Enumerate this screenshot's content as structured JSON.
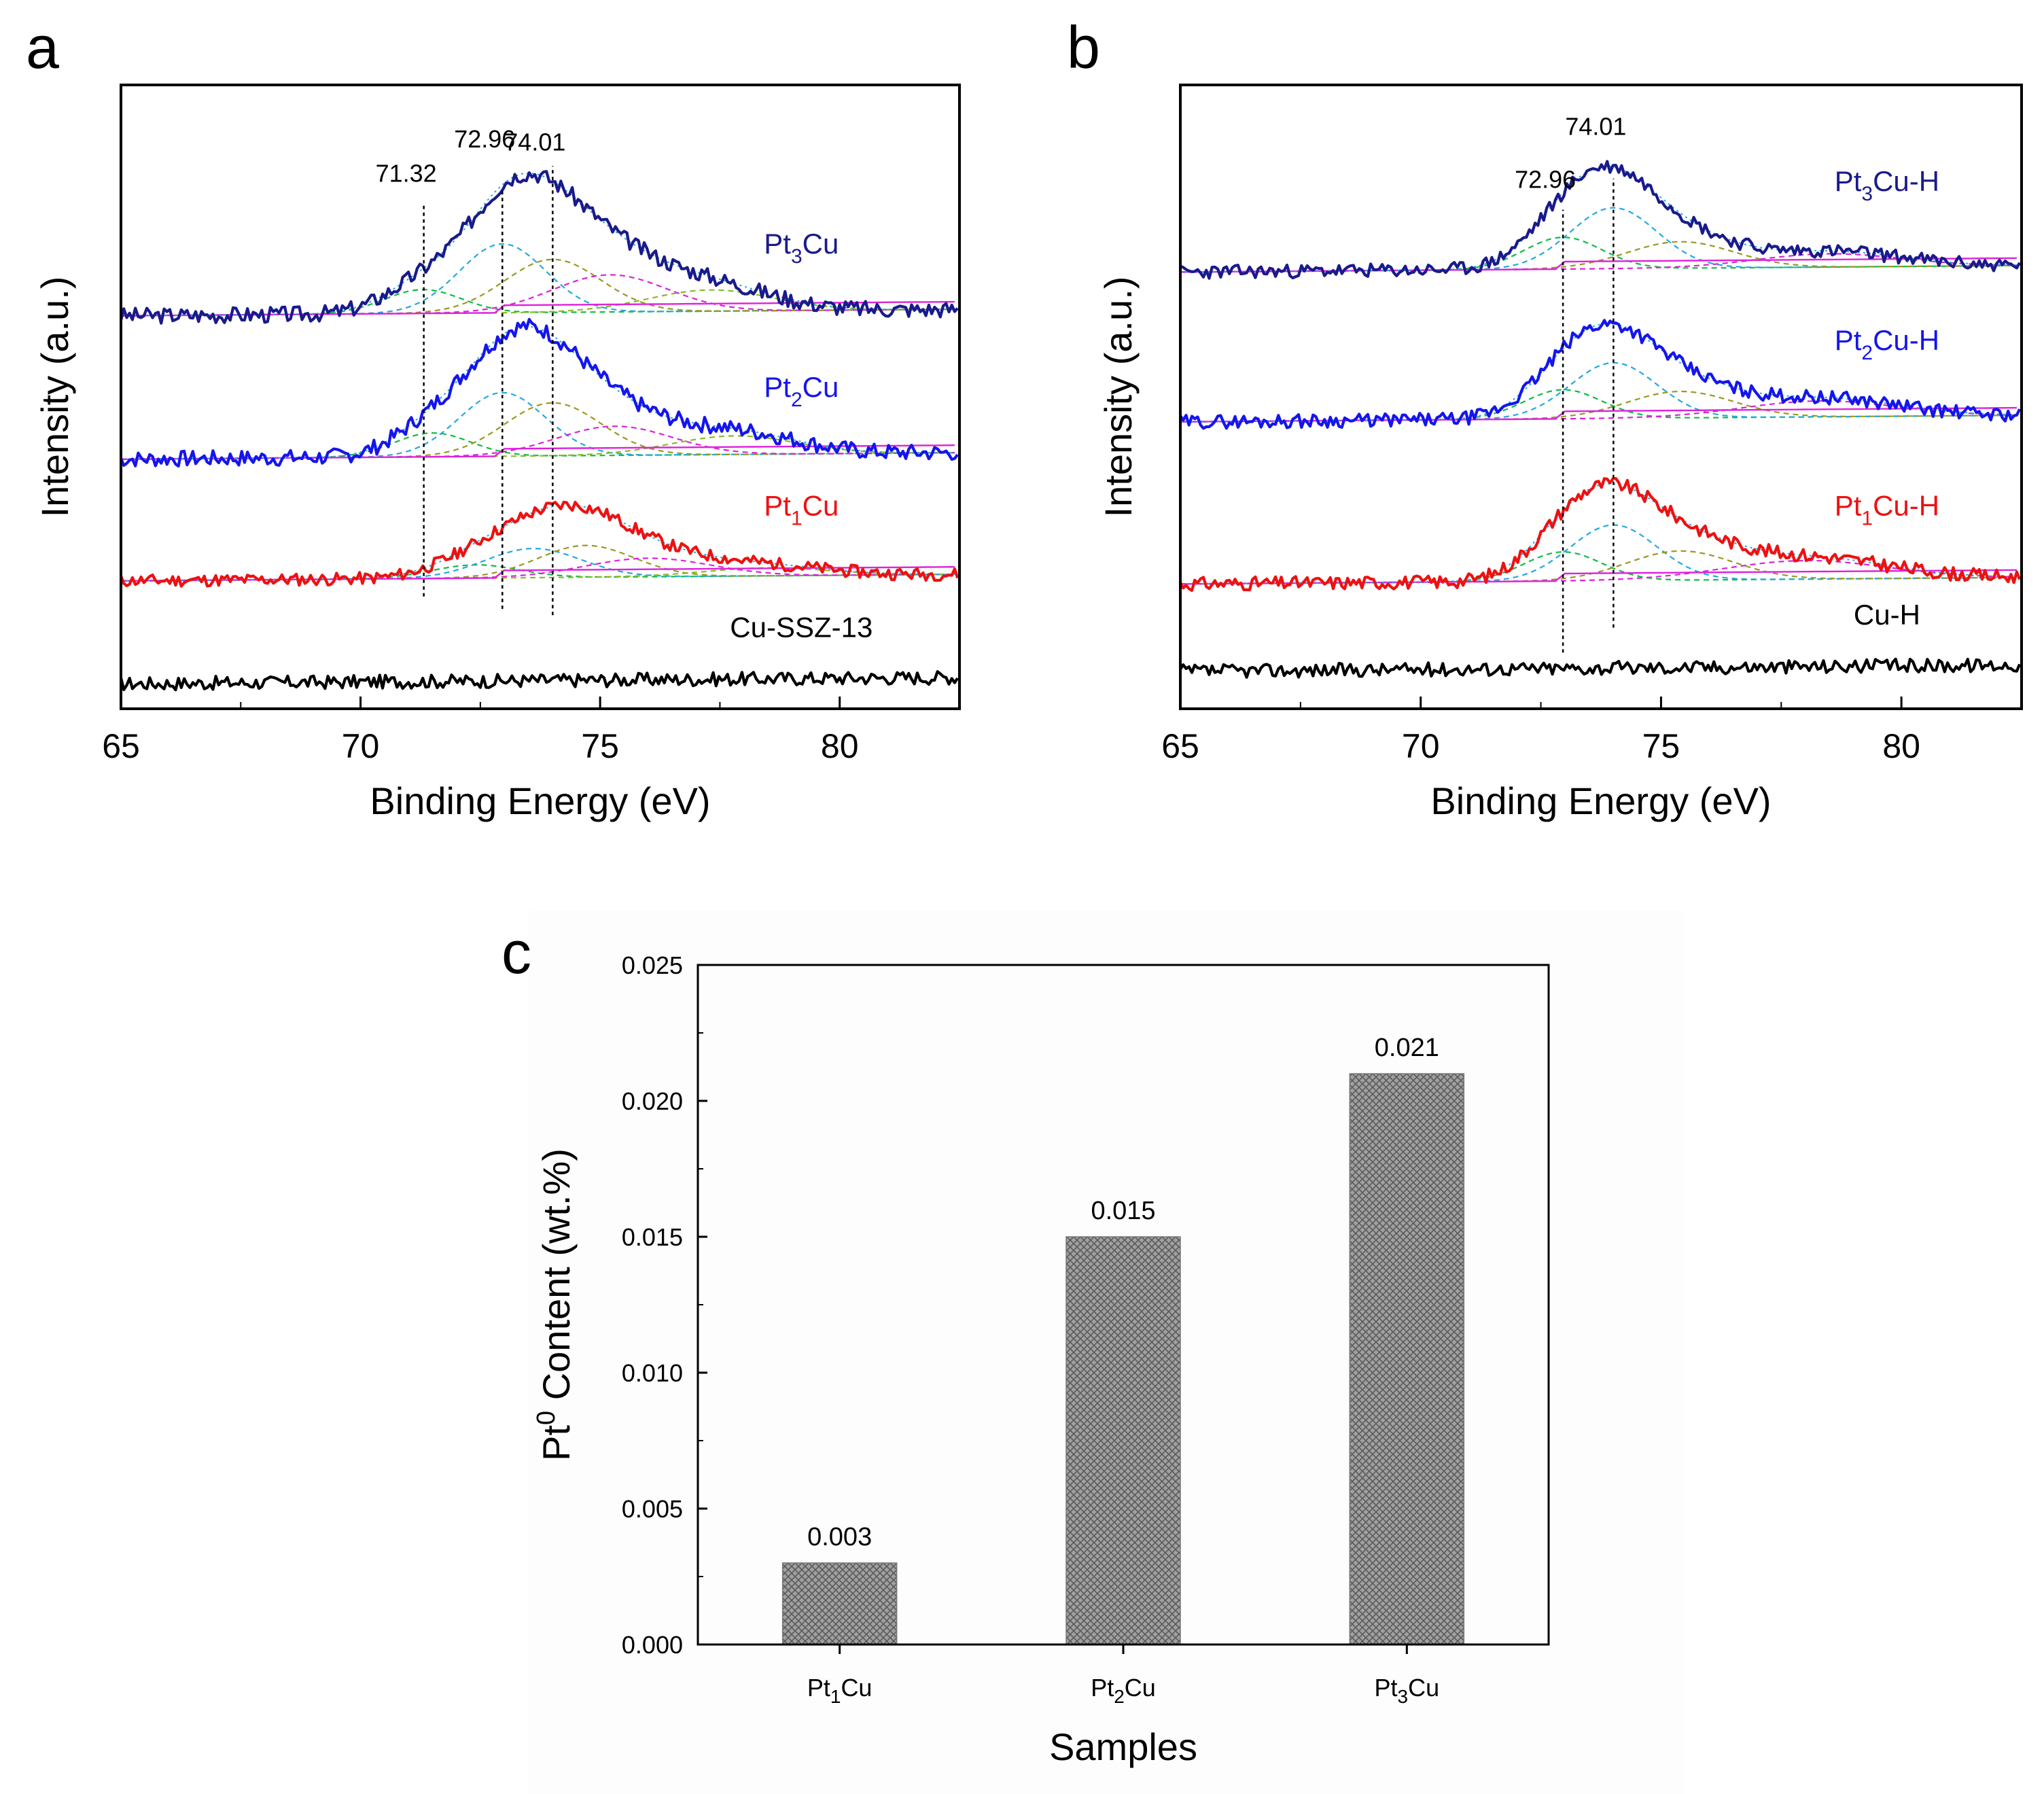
{
  "colors": {
    "navy": "#1a1a8c",
    "blue": "#1515ee",
    "red": "#ee1111",
    "black": "#000000",
    "bar_fill": "#9a9a9a",
    "bar_hatch": "#5a5a5a",
    "fit_green": "#11bb44",
    "fit_cyan": "#22aadd",
    "fit_olive": "#999922",
    "fit_magenta": "#dd22dd",
    "fit_yellowgreen": "#88bb22"
  },
  "chart_data": [
    {
      "id": "a",
      "type": "line",
      "panel_label": "a",
      "xlabel": "Binding Energy (eV)",
      "ylabel": "Intensity (a.u.)",
      "xlim": [
        65,
        82.5
      ],
      "xticks": [
        65,
        70,
        75,
        80
      ],
      "ylim": [
        0,
        10
      ],
      "y_ticks_shown": false,
      "reference_lines": [
        {
          "x": 71.32,
          "label": "71.32",
          "y_from": 1.8,
          "y_to": 8.1,
          "label_y": 8.45
        },
        {
          "x": 72.96,
          "label": "72.96",
          "y_from": 1.6,
          "y_to": 8.3,
          "label_y": 9.0
        },
        {
          "x": 74.01,
          "label": "74.01",
          "y_from": 1.5,
          "y_to": 8.7,
          "label_y": 8.95
        }
      ],
      "series": [
        {
          "name": "Pt3Cu",
          "label_main": "Pt",
          "label_sub": "3",
          "label_end": "Cu",
          "label_x": 79.2,
          "label_y": 7.3,
          "color": "navy",
          "baseline": 6.3,
          "peaks": [
            [
              71.3,
              0.45,
              0.8
            ],
            [
              72.96,
              1.3,
              0.9
            ],
            [
              74.01,
              1.0,
              1.0
            ],
            [
              75.2,
              0.7,
              1.2
            ],
            [
              77.3,
              0.4,
              1.3
            ]
          ],
          "noise_seed": 3,
          "noise_amp": 0.13
        },
        {
          "name": "Pt2Cu",
          "label_main": "Pt",
          "label_sub": "2",
          "label_end": "Cu",
          "label_x": 79.2,
          "label_y": 5.0,
          "color": "blue",
          "baseline": 4.0,
          "peaks": [
            [
              71.5,
              0.45,
              0.8
            ],
            [
              72.96,
              1.2,
              0.9
            ],
            [
              74.01,
              1.0,
              1.0
            ],
            [
              75.3,
              0.55,
              1.2
            ],
            [
              77.8,
              0.35,
              1.3
            ]
          ],
          "noise_seed": 7,
          "noise_amp": 0.13
        },
        {
          "name": "Pt1Cu",
          "label_main": "Pt",
          "label_sub": "1",
          "label_end": "Cu",
          "label_x": 79.2,
          "label_y": 3.1,
          "color": "red",
          "baseline": 2.05,
          "peaks": [
            [
              72.4,
              0.25,
              0.9
            ],
            [
              73.6,
              0.55,
              1.0
            ],
            [
              74.7,
              0.6,
              1.0
            ],
            [
              76.0,
              0.35,
              1.3
            ],
            [
              78.5,
              0.15,
              1.3
            ]
          ],
          "noise_seed": 11,
          "noise_amp": 0.1
        },
        {
          "name": "Cu-SSZ-13",
          "label_main": "Cu-SSZ-13",
          "label_sub": "",
          "label_end": "",
          "label_x": 79.2,
          "label_y": 1.15,
          "color": "black",
          "baseline": 0.4,
          "peaks": [],
          "noise_seed": 17,
          "noise_amp": 0.11
        }
      ]
    },
    {
      "id": "b",
      "type": "line",
      "panel_label": "b",
      "xlabel": "Binding Energy (eV)",
      "ylabel": "Intensity (a.u.)",
      "xlim": [
        65,
        82.5
      ],
      "xticks": [
        65,
        70,
        75,
        80
      ],
      "ylim": [
        0,
        10
      ],
      "y_ticks_shown": false,
      "reference_lines": [
        {
          "x": 72.96,
          "label": "72.96",
          "y_from": 0.9,
          "y_to": 8.0,
          "label_y": 8.35
        },
        {
          "x": 74.01,
          "label": "74.01",
          "y_from": 1.3,
          "y_to": 8.5,
          "label_y": 9.2
        }
      ],
      "series": [
        {
          "name": "Pt3Cu-H",
          "label_main": "Pt",
          "label_sub": "3",
          "label_end": "Cu-H",
          "label_x": 79.7,
          "label_y": 8.3,
          "color": "navy",
          "baseline": 7.0,
          "peaks": [
            [
              72.96,
              0.6,
              0.8
            ],
            [
              74.01,
              1.15,
              0.9
            ],
            [
              75.4,
              0.5,
              1.1
            ],
            [
              78.5,
              0.25,
              1.5
            ]
          ],
          "noise_seed": 23,
          "noise_amp": 0.11
        },
        {
          "name": "Pt2Cu-H",
          "label_main": "Pt",
          "label_sub": "2",
          "label_end": "Cu-H",
          "label_x": 79.7,
          "label_y": 5.75,
          "color": "blue",
          "baseline": 4.6,
          "peaks": [
            [
              72.96,
              0.55,
              0.8
            ],
            [
              74.01,
              1.05,
              0.9
            ],
            [
              75.4,
              0.5,
              1.1
            ],
            [
              78.3,
              0.3,
              1.6
            ]
          ],
          "noise_seed": 29,
          "noise_amp": 0.11
        },
        {
          "name": "Pt1Cu-H",
          "label_main": "Pt",
          "label_sub": "1",
          "label_end": "Cu-H",
          "label_x": 79.7,
          "label_y": 3.1,
          "color": "red",
          "baseline": 2.0,
          "peaks": [
            [
              72.96,
              0.55,
              0.8
            ],
            [
              74.01,
              1.05,
              0.9
            ],
            [
              75.4,
              0.55,
              1.1
            ],
            [
              78.0,
              0.35,
              1.7
            ]
          ],
          "noise_seed": 31,
          "noise_amp": 0.11
        },
        {
          "name": "Cu-H",
          "label_main": "Cu-H",
          "label_sub": "",
          "label_end": "",
          "label_x": 79.7,
          "label_y": 1.35,
          "color": "black",
          "baseline": 0.6,
          "peaks": [],
          "noise_seed": 37,
          "noise_amp": 0.11
        }
      ]
    },
    {
      "id": "c",
      "type": "bar",
      "panel_label": "c",
      "title": "",
      "xlabel": "Samples",
      "ylabel_main": "Pt",
      "ylabel_sup": "0",
      "ylabel_end": " Content (wt.%)",
      "ylim": [
        0,
        0.025
      ],
      "yticks": [
        "0.000",
        "0.005",
        "0.010",
        "0.015",
        "0.020",
        "0.025"
      ],
      "categories": [
        {
          "main": "Pt",
          "sub": "1",
          "end": "Cu"
        },
        {
          "main": "Pt",
          "sub": "2",
          "end": "Cu"
        },
        {
          "main": "Pt",
          "sub": "3",
          "end": "Cu"
        }
      ],
      "values": [
        0.003,
        0.015,
        0.021
      ],
      "value_labels": [
        "0.003",
        "0.015",
        "0.021"
      ]
    }
  ]
}
